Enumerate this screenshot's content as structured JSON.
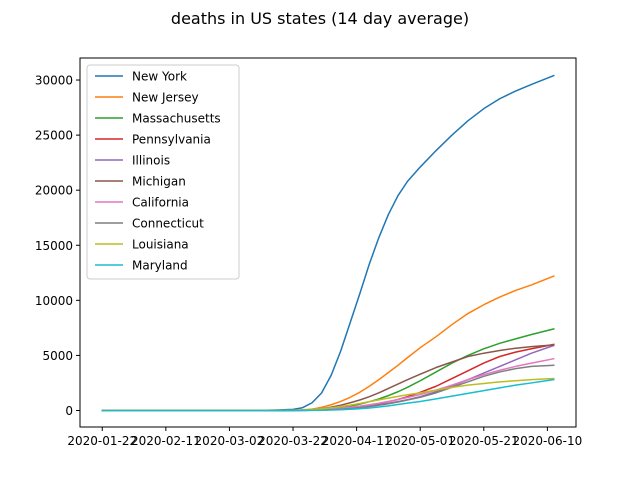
{
  "chart_data": {
    "type": "line",
    "title": "deaths in US states (14 day average)",
    "xlabel": "",
    "ylabel": "",
    "x_ticks": [
      "2020-01-22",
      "2020-02-11",
      "2020-03-02",
      "2020-03-22",
      "2020-04-11",
      "2020-05-01",
      "2020-05-21",
      "2020-06-10"
    ],
    "y_ticks": [
      0,
      5000,
      10000,
      15000,
      20000,
      25000,
      30000
    ],
    "xlim": [
      "2020-01-15",
      "2020-06-19"
    ],
    "ylim": [
      -1500,
      32000
    ],
    "grid": false,
    "legend_position": "top-left",
    "x": [
      "2020-01-22",
      "2020-02-11",
      "2020-03-02",
      "2020-03-12",
      "2020-03-17",
      "2020-03-22",
      "2020-03-25",
      "2020-03-28",
      "2020-03-31",
      "2020-04-03",
      "2020-04-06",
      "2020-04-09",
      "2020-04-12",
      "2020-04-15",
      "2020-04-18",
      "2020-04-21",
      "2020-04-24",
      "2020-04-27",
      "2020-05-01",
      "2020-05-06",
      "2020-05-11",
      "2020-05-16",
      "2020-05-21",
      "2020-05-26",
      "2020-05-31",
      "2020-06-05",
      "2020-06-12"
    ],
    "series": [
      {
        "name": "New York",
        "color": "#1f77b4",
        "values": [
          0,
          0,
          0,
          10,
          40,
          100,
          250,
          700,
          1600,
          3200,
          5400,
          8000,
          10600,
          13300,
          15700,
          17800,
          19500,
          20800,
          22100,
          23600,
          25000,
          26300,
          27400,
          28300,
          29000,
          29600,
          30400
        ]
      },
      {
        "name": "New Jersey",
        "color": "#ff7f0e",
        "values": [
          0,
          0,
          0,
          0,
          5,
          20,
          50,
          120,
          280,
          520,
          820,
          1200,
          1650,
          2200,
          2800,
          3450,
          4100,
          4800,
          5700,
          6700,
          7800,
          8800,
          9600,
          10300,
          10900,
          11400,
          12200
        ]
      },
      {
        "name": "Massachusetts",
        "color": "#2ca02c",
        "values": [
          0,
          0,
          0,
          0,
          0,
          5,
          15,
          40,
          90,
          160,
          260,
          400,
          580,
          800,
          1050,
          1350,
          1700,
          2100,
          2700,
          3500,
          4300,
          5000,
          5600,
          6100,
          6500,
          6900,
          7400
        ]
      },
      {
        "name": "Pennsylvania",
        "color": "#d62728",
        "values": [
          0,
          0,
          0,
          0,
          0,
          5,
          10,
          25,
          50,
          90,
          150,
          230,
          340,
          470,
          620,
          800,
          1000,
          1250,
          1650,
          2200,
          2900,
          3600,
          4300,
          4900,
          5300,
          5600,
          6000
        ]
      },
      {
        "name": "Illinois",
        "color": "#9467bd",
        "values": [
          0,
          0,
          0,
          0,
          0,
          5,
          10,
          25,
          50,
          90,
          140,
          210,
          300,
          400,
          520,
          650,
          800,
          980,
          1250,
          1700,
          2200,
          2800,
          3400,
          4000,
          4600,
          5200,
          5900
        ]
      },
      {
        "name": "Michigan",
        "color": "#8c564b",
        "values": [
          0,
          0,
          0,
          0,
          0,
          5,
          25,
          70,
          160,
          300,
          480,
          700,
          950,
          1250,
          1600,
          2000,
          2400,
          2800,
          3300,
          3900,
          4400,
          4900,
          5200,
          5450,
          5650,
          5800,
          5950
        ]
      },
      {
        "name": "California",
        "color": "#e377c2",
        "values": [
          0,
          0,
          0,
          0,
          5,
          15,
          30,
          60,
          100,
          150,
          220,
          300,
          400,
          520,
          660,
          820,
          990,
          1180,
          1450,
          1850,
          2300,
          2800,
          3250,
          3650,
          4000,
          4300,
          4700
        ]
      },
      {
        "name": "Connecticut",
        "color": "#7f7f7f",
        "values": [
          0,
          0,
          0,
          0,
          0,
          5,
          10,
          20,
          40,
          70,
          110,
          170,
          250,
          350,
          470,
          610,
          770,
          950,
          1200,
          1600,
          2100,
          2600,
          3100,
          3500,
          3800,
          4000,
          4100
        ]
      },
      {
        "name": "Louisiana",
        "color": "#bcbd22",
        "values": [
          0,
          0,
          0,
          0,
          5,
          15,
          40,
          90,
          160,
          250,
          360,
          490,
          640,
          800,
          960,
          1120,
          1280,
          1430,
          1600,
          1850,
          2100,
          2300,
          2450,
          2600,
          2700,
          2800,
          2900
        ]
      },
      {
        "name": "Maryland",
        "color": "#17becf",
        "values": [
          0,
          0,
          0,
          0,
          0,
          0,
          5,
          10,
          20,
          40,
          70,
          110,
          160,
          230,
          320,
          420,
          540,
          670,
          820,
          1050,
          1300,
          1550,
          1800,
          2050,
          2300,
          2500,
          2800
        ]
      }
    ]
  }
}
